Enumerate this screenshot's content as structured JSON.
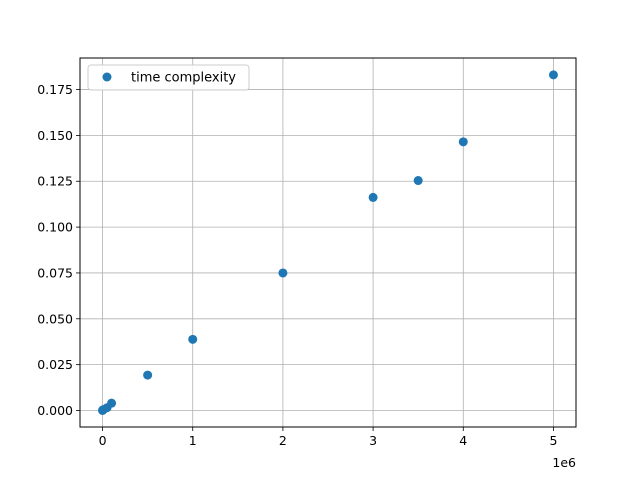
{
  "chart_data": {
    "type": "scatter",
    "title": "",
    "xlabel": "",
    "ylabel": "",
    "x_scale_note": "1e6",
    "xlim": [
      -0.25,
      5.25
    ],
    "ylim": [
      -0.009,
      0.1922
    ],
    "x_ticks": [
      0,
      1,
      2,
      3,
      4,
      5
    ],
    "x_tick_labels": [
      "0",
      "1",
      "2",
      "3",
      "4",
      "5"
    ],
    "y_ticks": [
      0.0,
      0.025,
      0.05,
      0.075,
      0.1,
      0.125,
      0.15,
      0.175
    ],
    "y_tick_labels": [
      "0.000",
      "0.025",
      "0.050",
      "0.075",
      "0.100",
      "0.125",
      "0.150",
      "0.175"
    ],
    "grid": true,
    "legend": {
      "position": "top-left",
      "entries": [
        "time complexity"
      ]
    },
    "series": [
      {
        "name": "time complexity",
        "color": "#1f77b4",
        "points": [
          {
            "x": 0.0,
            "y": 0.0
          },
          {
            "x": 0.001,
            "y": 0.0002
          },
          {
            "x": 0.01,
            "y": 0.0005
          },
          {
            "x": 0.05,
            "y": 0.0015
          },
          {
            "x": 0.1,
            "y": 0.004
          },
          {
            "x": 0.5,
            "y": 0.0193
          },
          {
            "x": 1.0,
            "y": 0.0388
          },
          {
            "x": 2.0,
            "y": 0.075
          },
          {
            "x": 3.0,
            "y": 0.1162
          },
          {
            "x": 3.5,
            "y": 0.1254
          },
          {
            "x": 4.0,
            "y": 0.1465
          },
          {
            "x": 5.0,
            "y": 0.183
          }
        ]
      }
    ]
  }
}
